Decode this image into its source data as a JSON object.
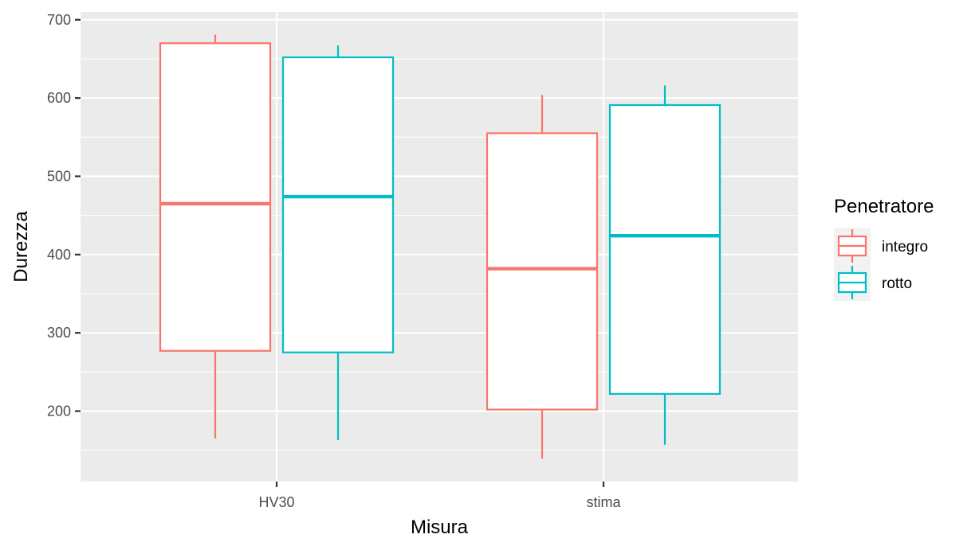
{
  "chart_data": {
    "type": "boxplot",
    "xlabel": "Misura",
    "ylabel": "Durezza",
    "categories": [
      "HV30",
      "stima"
    ],
    "ylim": [
      110,
      710
    ],
    "yticks": [
      200,
      300,
      400,
      500,
      600,
      700
    ],
    "grid": true,
    "legend": {
      "title": "Penetratore",
      "position": "right"
    },
    "series": [
      {
        "name": "integro",
        "color": "#F8766D",
        "boxes": [
          {
            "category": "HV30",
            "min": 165,
            "q1": 277,
            "median": 465,
            "q3": 670,
            "max": 681
          },
          {
            "category": "stima",
            "min": 139,
            "q1": 202,
            "median": 382,
            "q3": 555,
            "max": 604
          }
        ]
      },
      {
        "name": "rotto",
        "color": "#00BFC4",
        "boxes": [
          {
            "category": "HV30",
            "min": 163,
            "q1": 275,
            "median": 474,
            "q3": 652,
            "max": 667
          },
          {
            "category": "stima",
            "min": 157,
            "q1": 222,
            "median": 424,
            "q3": 591,
            "max": 616
          }
        ]
      }
    ]
  },
  "colors": {
    "panel_bg": "#EBEBEB",
    "grid": "#FFFFFF",
    "box_fill": "#FFFFFF"
  }
}
